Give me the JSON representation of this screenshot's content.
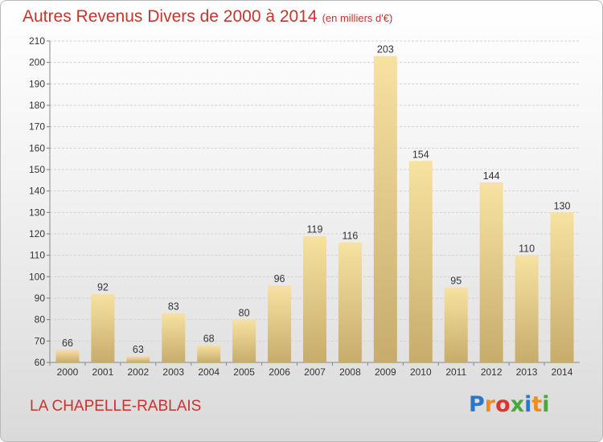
{
  "header": {
    "title": "Autres Revenus Divers de 2000 à 2014",
    "subtitle": "(en milliers d'€)"
  },
  "footer": {
    "commune": "LA CHAPELLE-RABLAIS",
    "logo_letters": [
      "P",
      "r",
      "o",
      "x",
      "i",
      "t",
      "i"
    ],
    "logo_colors": [
      "#2a78c8",
      "#f08c1e",
      "#e2332a",
      "#48a83c",
      "#2a78c8",
      "#f08c1e",
      "#48a83c"
    ]
  },
  "colors": {
    "bar_light": "#f7e2a2",
    "bar_dark": "#c7ac6c",
    "grid": "#d2d2d2",
    "title": "#c8342c"
  },
  "chart_data": {
    "type": "bar",
    "categories": [
      "2000",
      "2001",
      "2002",
      "2003",
      "2004",
      "2005",
      "2006",
      "2007",
      "2008",
      "2009",
      "2010",
      "2011",
      "2012",
      "2013",
      "2014"
    ],
    "values": [
      66,
      92,
      63,
      83,
      68,
      80,
      96,
      119,
      116,
      203,
      154,
      95,
      144,
      110,
      130
    ],
    "yticks": [
      60,
      70,
      80,
      90,
      100,
      110,
      120,
      130,
      140,
      150,
      160,
      170,
      180,
      190,
      200,
      210
    ],
    "ylim": [
      60,
      210
    ],
    "grid": true,
    "xlabel": "",
    "ylabel": ""
  }
}
